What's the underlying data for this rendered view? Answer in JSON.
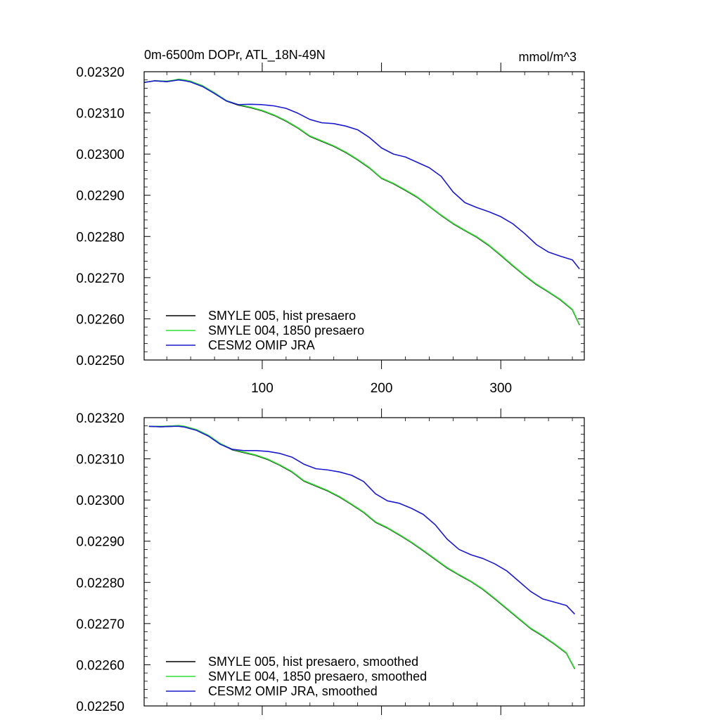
{
  "chart_data": [
    {
      "type": "line",
      "title": "0m-6500m DOPr, ATL_18N-49N",
      "units": "mmol/m^3",
      "xlim": [
        1,
        370
      ],
      "ylim": [
        0.0225,
        0.0232
      ],
      "x_ticks": [
        100,
        200,
        300
      ],
      "x_tick_labels": [
        "100",
        "200",
        "300"
      ],
      "y_ticks": [
        "0.02250",
        "0.02260",
        "0.02270",
        "0.02280",
        "0.02290",
        "0.02300",
        "0.02310",
        "0.02320"
      ],
      "grid": false,
      "legend_position": "bottom-left",
      "series": [
        {
          "name": "SMYLE 005, hist presaero",
          "color": "#000000",
          "x": [
            1,
            10,
            20,
            25,
            30,
            35,
            40,
            50,
            60,
            70,
            80,
            90,
            100,
            110,
            120,
            130,
            140,
            150,
            160,
            170,
            180,
            190,
            200,
            210,
            220,
            230,
            240,
            250,
            260,
            270,
            280,
            290,
            300,
            310,
            320,
            330,
            340,
            350,
            360,
            366
          ],
          "y": [
            0.023174,
            0.023178,
            0.023176,
            0.023178,
            0.023181,
            0.023179,
            0.023176,
            0.023165,
            0.023148,
            0.023129,
            0.023119,
            0.023113,
            0.023105,
            0.023094,
            0.02308,
            0.023063,
            0.023043,
            0.023031,
            0.023019,
            0.023004,
            0.022986,
            0.022966,
            0.022941,
            0.022928,
            0.022912,
            0.022895,
            0.022873,
            0.022851,
            0.022831,
            0.022814,
            0.022798,
            0.022778,
            0.022754,
            0.022729,
            0.022705,
            0.022683,
            0.022665,
            0.022646,
            0.022622,
            0.022585
          ]
        },
        {
          "name": "SMYLE 004, 1850 presaero",
          "color": "#33dd33",
          "x": [
            1,
            10,
            20,
            25,
            30,
            35,
            40,
            50,
            60,
            70,
            80,
            90,
            100,
            110,
            120,
            130,
            140,
            150,
            160,
            170,
            180,
            190,
            200,
            210,
            220,
            230,
            240,
            250,
            260,
            270,
            280,
            290,
            300,
            310,
            320,
            330,
            340,
            350,
            360,
            366
          ],
          "y": [
            0.023174,
            0.023178,
            0.023177,
            0.023179,
            0.023182,
            0.02318,
            0.023177,
            0.023166,
            0.023149,
            0.02313,
            0.02312,
            0.023114,
            0.023106,
            0.023095,
            0.023081,
            0.023064,
            0.023044,
            0.023032,
            0.02302,
            0.023005,
            0.022987,
            0.022967,
            0.022942,
            0.022929,
            0.022913,
            0.022896,
            0.022874,
            0.022852,
            0.022832,
            0.022815,
            0.022799,
            0.022779,
            0.022755,
            0.02273,
            0.022706,
            0.022684,
            0.022666,
            0.022647,
            0.022623,
            0.022586
          ]
        },
        {
          "name": "CESM2 OMIP JRA",
          "color": "#1a1acc",
          "x": [
            1,
            10,
            20,
            25,
            30,
            35,
            40,
            50,
            60,
            70,
            80,
            90,
            100,
            110,
            120,
            130,
            140,
            150,
            160,
            170,
            180,
            190,
            200,
            210,
            220,
            230,
            240,
            250,
            260,
            270,
            280,
            290,
            300,
            310,
            320,
            330,
            340,
            350,
            360,
            366
          ],
          "y": [
            0.023174,
            0.023178,
            0.023176,
            0.023178,
            0.02318,
            0.023178,
            0.023175,
            0.023164,
            0.023147,
            0.023129,
            0.02312,
            0.023121,
            0.02312,
            0.023117,
            0.023111,
            0.023099,
            0.023084,
            0.023076,
            0.023074,
            0.023068,
            0.023059,
            0.02304,
            0.023015,
            0.023,
            0.022993,
            0.02298,
            0.022967,
            0.022946,
            0.022908,
            0.022882,
            0.02287,
            0.02286,
            0.022848,
            0.022831,
            0.022807,
            0.02278,
            0.022762,
            0.022752,
            0.022743,
            0.022721
          ]
        }
      ]
    },
    {
      "type": "line",
      "title": "",
      "units": "",
      "xlim": [
        1,
        370
      ],
      "ylim": [
        0.0225,
        0.0232
      ],
      "x_ticks": [
        100,
        200,
        300
      ],
      "x_tick_labels": [],
      "y_ticks": [
        "0.02250",
        "0.02260",
        "0.02270",
        "0.02280",
        "0.02290",
        "0.02300",
        "0.02310",
        "0.02320"
      ],
      "grid": false,
      "legend_position": "bottom-left",
      "series": [
        {
          "name": "SMYLE 005, hist presaero, smoothed",
          "color": "#000000",
          "x": [
            5,
            15,
            25,
            30,
            35,
            45,
            55,
            65,
            75,
            85,
            95,
            105,
            115,
            125,
            135,
            145,
            155,
            165,
            175,
            185,
            195,
            205,
            215,
            225,
            235,
            245,
            255,
            265,
            275,
            285,
            295,
            305,
            315,
            325,
            335,
            345,
            355,
            362
          ],
          "y": [
            0.023179,
            0.023178,
            0.023179,
            0.02318,
            0.023178,
            0.02317,
            0.023156,
            0.023136,
            0.023122,
            0.023115,
            0.023108,
            0.023098,
            0.023084,
            0.023068,
            0.023046,
            0.023034,
            0.023022,
            0.023007,
            0.022989,
            0.02297,
            0.022946,
            0.022932,
            0.022915,
            0.022897,
            0.022877,
            0.022856,
            0.022835,
            0.022818,
            0.022802,
            0.022783,
            0.02276,
            0.022736,
            0.022712,
            0.022688,
            0.02267,
            0.02265,
            0.022628,
            0.02259
          ]
        },
        {
          "name": "SMYLE 004, 1850 presaero, smoothed",
          "color": "#33dd33",
          "x": [
            5,
            15,
            25,
            30,
            35,
            45,
            55,
            65,
            75,
            85,
            95,
            105,
            115,
            125,
            135,
            145,
            155,
            165,
            175,
            185,
            195,
            205,
            215,
            225,
            235,
            245,
            255,
            265,
            275,
            285,
            295,
            305,
            315,
            325,
            335,
            345,
            355,
            362
          ],
          "y": [
            0.023179,
            0.023179,
            0.02318,
            0.023181,
            0.023179,
            0.023171,
            0.023157,
            0.023137,
            0.023123,
            0.023116,
            0.023109,
            0.023099,
            0.023085,
            0.023069,
            0.023047,
            0.023035,
            0.023023,
            0.023008,
            0.02299,
            0.022971,
            0.022947,
            0.022933,
            0.022916,
            0.022898,
            0.022878,
            0.022857,
            0.022836,
            0.022819,
            0.022803,
            0.022784,
            0.022761,
            0.022737,
            0.022713,
            0.022689,
            0.022671,
            0.022651,
            0.022629,
            0.022591
          ]
        },
        {
          "name": "CESM2 OMIP JRA, smoothed",
          "color": "#1a1acc",
          "x": [
            5,
            15,
            25,
            30,
            35,
            45,
            55,
            65,
            75,
            85,
            95,
            105,
            115,
            125,
            135,
            145,
            155,
            165,
            175,
            185,
            195,
            205,
            215,
            225,
            235,
            245,
            255,
            265,
            275,
            285,
            295,
            305,
            315,
            325,
            335,
            345,
            355,
            362
          ],
          "y": [
            0.023179,
            0.023178,
            0.023179,
            0.023179,
            0.023177,
            0.023169,
            0.023155,
            0.023135,
            0.023123,
            0.02312,
            0.02312,
            0.023118,
            0.023113,
            0.023104,
            0.023087,
            0.023076,
            0.023073,
            0.023068,
            0.02306,
            0.023045,
            0.023015,
            0.022998,
            0.022992,
            0.02298,
            0.022965,
            0.02294,
            0.022905,
            0.02288,
            0.022867,
            0.022858,
            0.022845,
            0.022828,
            0.022803,
            0.022778,
            0.02276,
            0.022752,
            0.022744,
            0.022723
          ]
        }
      ]
    }
  ]
}
